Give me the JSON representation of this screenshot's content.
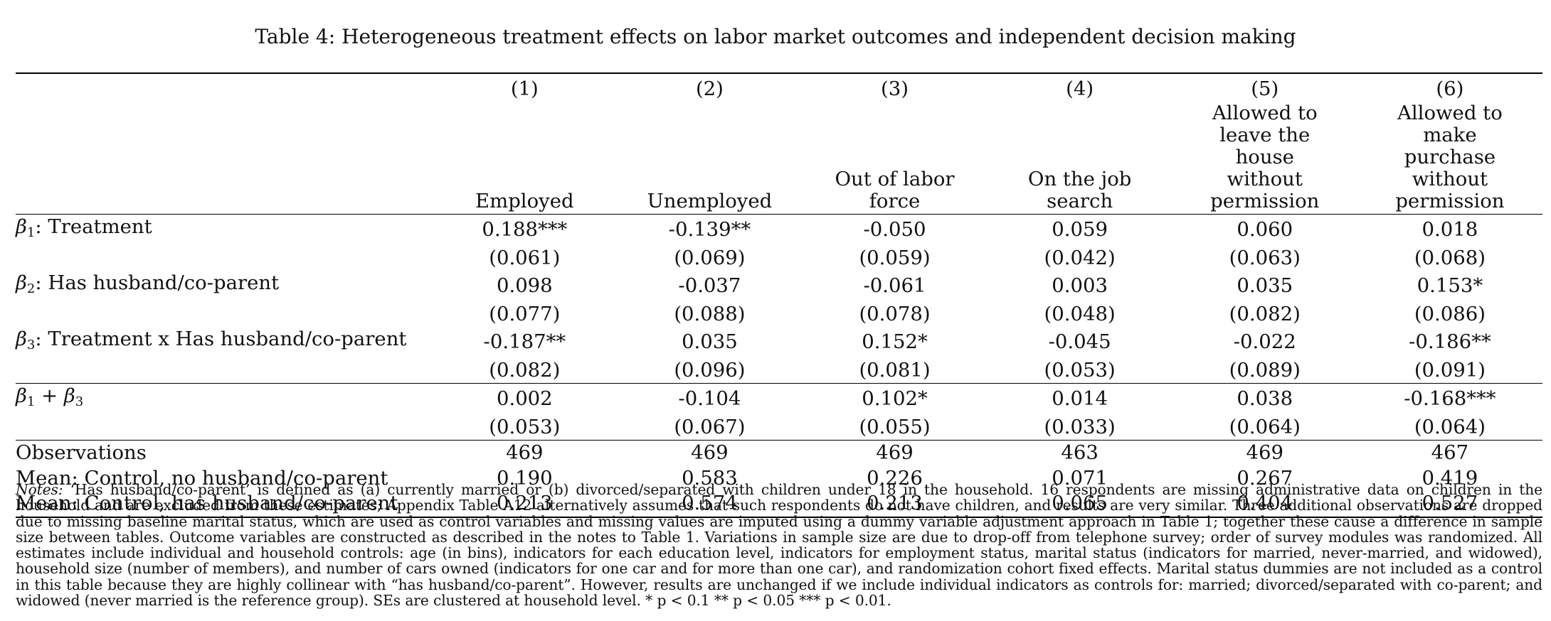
{
  "caption": "Table 4: Heterogeneous treatment effects on labor market outcomes and independent decision making",
  "columns": [
    {
      "num": "(1)",
      "name": "Employed"
    },
    {
      "num": "(2)",
      "name": "Unemployed"
    },
    {
      "num": "(3)",
      "name": "Out of labor force"
    },
    {
      "num": "(4)",
      "name": "On the job search"
    },
    {
      "num": "(5)",
      "name": "Allowed to leave the house without permission"
    },
    {
      "num": "(6)",
      "name": "Allowed to make purchase without permission"
    }
  ],
  "rows": {
    "beta1": {
      "sym": "β",
      "sub": "1",
      "label": ": Treatment",
      "coef": [
        "0.188***",
        "-0.139**",
        "-0.050",
        "0.059",
        "0.060",
        "0.018"
      ],
      "se": [
        "(0.061)",
        "(0.069)",
        "(0.059)",
        "(0.042)",
        "(0.063)",
        "(0.068)"
      ]
    },
    "beta2": {
      "sym": "β",
      "sub": "2",
      "label": ": Has husband/co-parent",
      "coef": [
        "0.098",
        "-0.037",
        "-0.061",
        "0.003",
        "0.035",
        "0.153*"
      ],
      "se": [
        "(0.077)",
        "(0.088)",
        "(0.078)",
        "(0.048)",
        "(0.082)",
        "(0.086)"
      ]
    },
    "beta3": {
      "sym": "β",
      "sub": "3",
      "label": ": Treatment x Has husband/co-parent",
      "coef": [
        "-0.187**",
        "0.035",
        "0.152*",
        "-0.045",
        "-0.022",
        "-0.186**"
      ],
      "se": [
        "(0.082)",
        "(0.096)",
        "(0.081)",
        "(0.053)",
        "(0.089)",
        "(0.091)"
      ]
    },
    "beta1_plus_beta3": {
      "sym_a": "β",
      "sub_a": "1",
      "plus": " + ",
      "sym_b": "β",
      "sub_b": "3",
      "coef": [
        "0.002",
        "-0.104",
        "0.102*",
        "0.014",
        "0.038",
        "-0.168***"
      ],
      "se": [
        "(0.053)",
        "(0.067)",
        "(0.055)",
        "(0.033)",
        "(0.064)",
        "(0.064)"
      ]
    },
    "observations": {
      "label": "Observations",
      "values": [
        "469",
        "469",
        "469",
        "463",
        "469",
        "467"
      ]
    },
    "mean_no_husband": {
      "label": "Mean: Control, no husband/co-parent",
      "values": [
        "0.190",
        "0.583",
        "0.226",
        "0.071",
        "0.267",
        "0.419"
      ]
    },
    "mean_has_husband": {
      "label": "Mean: Control, has husband/co-parent",
      "values": [
        "0.213",
        "0.574",
        "0.213",
        "0.065",
        "0.404",
        "0.527"
      ]
    }
  },
  "notes": {
    "lead": "Notes:",
    "text": " ‘Has husband/co-parent’ is defined as (a) currently married or (b) divorced/separated with children under 18 in the household. 16 respondents are missing administrative data on children in the household and are excluded from these estimates; Appendix Table A12 alternatively assumes that such respondents do not have children, and results are very similar. Three additional observations are dropped due to missing baseline marital status, which are used as control variables and missing values are imputed using a dummy variable adjustment approach in Table 1; together these cause a difference in sample size between tables. Outcome variables are constructed as described in the notes to Table 1. Variations in sample size are due to drop-off from telephone survey; order of survey modules was randomized. All estimates include individual and household controls: age (in bins), indicators for each education level, indicators for employment status, marital status (indicators for married, never-married, and widowed), household size (number of members), and number of cars owned (indicators for one car and for more than one car), and randomization cohort fixed effects. Marital status dummies are not included as a control in this table because they are highly collinear with “has husband/co-parent”. However, results are unchanged if we include individual indicators as controls for: married; divorced/separated with co-parent; and widowed (never married is the reference group). SEs are clustered at household level. * p < 0.1 ** p < 0.05 *** p < 0.01."
  }
}
